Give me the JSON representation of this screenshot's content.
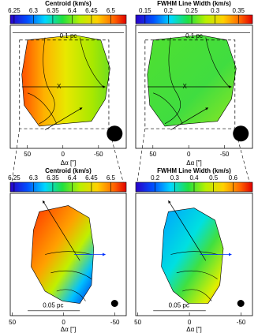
{
  "panels": [
    {
      "colorbar": {
        "title": "Centroid (km/s)",
        "lim": [
          6.24,
          6.54
        ],
        "ticks": [
          6.25,
          6.3,
          6.35,
          6.4,
          6.45,
          6.5
        ]
      },
      "scale_label": "0.1 pc",
      "marker": "X",
      "xlabel": "Δα [\"]",
      "xlim": [
        74,
        -89
      ],
      "xticks": [
        50,
        0,
        -50
      ]
    },
    {
      "colorbar": {
        "title": "FWHM Line Width (km/s)",
        "lim": [
          0.13,
          0.38
        ],
        "ticks": [
          0.15,
          0.2,
          0.25,
          0.3,
          0.35
        ]
      },
      "scale_label": "0.1 pc",
      "marker": "X",
      "xlabel": "Δα [\"]",
      "xlim": [
        74,
        -89
      ],
      "xticks": [
        50,
        0,
        -50
      ]
    },
    {
      "colorbar": {
        "title": "Centroid (km/s)",
        "lim": [
          6.24,
          6.54
        ],
        "ticks": [
          6.25,
          6.3,
          6.35,
          6.4,
          6.45,
          6.5
        ]
      },
      "scale_label": "0.05 pc",
      "xlabel": "Δα [\"]",
      "xlim": [
        52,
        -61
      ],
      "xticks": [
        50,
        0,
        -50
      ]
    },
    {
      "colorbar": {
        "title": "FWHM Line Width (km/s)",
        "lim": [
          0.1,
          0.7
        ],
        "ticks": [
          0.2,
          0.3,
          0.4,
          0.5,
          0.6
        ]
      },
      "scale_label": "0.05 pc",
      "xlabel": "Δα [\"]",
      "xlim": [
        52,
        -61
      ],
      "xticks": [
        50,
        0,
        -50
      ]
    }
  ]
}
